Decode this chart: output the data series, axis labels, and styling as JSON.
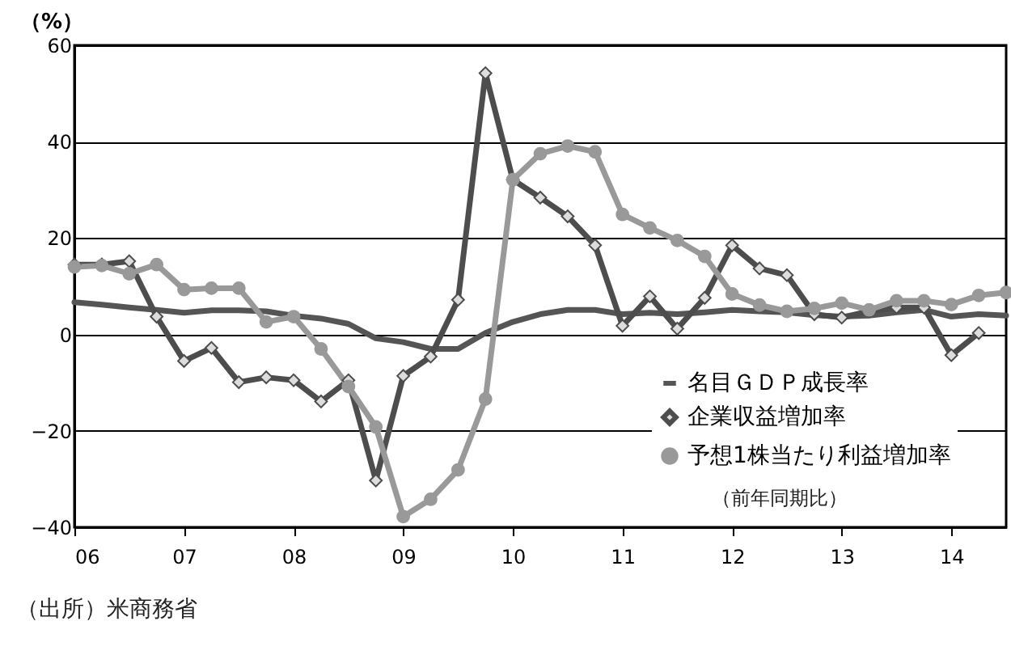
{
  "chart_data": {
    "type": "line",
    "ylabel": "（%）",
    "x": [
      2006,
      2006.25,
      2006.5,
      2006.75,
      2007,
      2007.25,
      2007.5,
      2007.75,
      2008,
      2008.25,
      2008.5,
      2008.75,
      2009,
      2009.25,
      2009.5,
      2009.75,
      2010,
      2010.25,
      2010.5,
      2010.75,
      2011,
      2011.25,
      2011.5,
      2011.75,
      2012,
      2012.25,
      2012.5,
      2012.75,
      2013,
      2013.25,
      2013.5,
      2013.75,
      2014,
      2014.25,
      2014.5
    ],
    "series": [
      {
        "name": "名目ＧＤＰ成長率",
        "color": "#555555",
        "marker": "none",
        "values": [
          6.7,
          6.2,
          5.6,
          5.1,
          4.5,
          5.0,
          5.0,
          4.8,
          3.9,
          3.3,
          2.2,
          -0.8,
          -1.6,
          -3.0,
          -3.0,
          0.3,
          2.6,
          4.2,
          5.1,
          5.1,
          4.2,
          4.5,
          4.2,
          4.6,
          5.1,
          4.8,
          4.6,
          4.0,
          3.7,
          3.9,
          4.6,
          5.1,
          3.7,
          4.2,
          3.9
        ]
      },
      {
        "name": "企業収益増加率",
        "color": "#4d4d4d",
        "marker": "diamond",
        "values": [
          14.5,
          14.5,
          15.2,
          3.7,
          -5.5,
          -2.8,
          -9.9,
          -8.9,
          -9.5,
          -13.9,
          -9.5,
          -30.3,
          -8.6,
          -4.6,
          7.2,
          54.2,
          32.1,
          28.4,
          24.5,
          18.5,
          1.8,
          7.9,
          1.2,
          7.6,
          18.5,
          13.7,
          12.3,
          4.2,
          3.5,
          4.8,
          5.6,
          5.6,
          -4.3,
          0.3,
          null
        ]
      },
      {
        "name": "予想1株当たり利益増加率",
        "color": "#999999",
        "marker": "circle",
        "values": [
          14.0,
          14.3,
          12.6,
          14.5,
          9.3,
          9.6,
          9.6,
          2.6,
          3.7,
          -3.0,
          -10.8,
          -19.2,
          -37.8,
          -34.2,
          -28.1,
          -13.4,
          32.1,
          37.5,
          39.1,
          37.9,
          24.9,
          22.1,
          19.5,
          16.2,
          8.4,
          6.1,
          4.8,
          5.4,
          6.5,
          5.1,
          7.0,
          7.0,
          6.2,
          8.1,
          8.7
        ]
      }
    ],
    "xlim": [
      2006,
      2014.5
    ],
    "xticks": [
      {
        "value": 2006,
        "label": "06"
      },
      {
        "value": 2007,
        "label": "07"
      },
      {
        "value": 2008,
        "label": "08"
      },
      {
        "value": 2009,
        "label": "09"
      },
      {
        "value": 2010,
        "label": "10"
      },
      {
        "value": 2011,
        "label": "11"
      },
      {
        "value": 2012,
        "label": "12"
      },
      {
        "value": 2013,
        "label": "13"
      },
      {
        "value": 2014,
        "label": "14"
      }
    ],
    "ylim": [
      -40,
      60
    ],
    "yticks": [
      -40,
      -20,
      0,
      20,
      40,
      60
    ],
    "grid": "y",
    "legend": "bottom right",
    "line_style": "solid",
    "annotations": [
      "（前年同期比）",
      "（出所）米商務省"
    ]
  }
}
